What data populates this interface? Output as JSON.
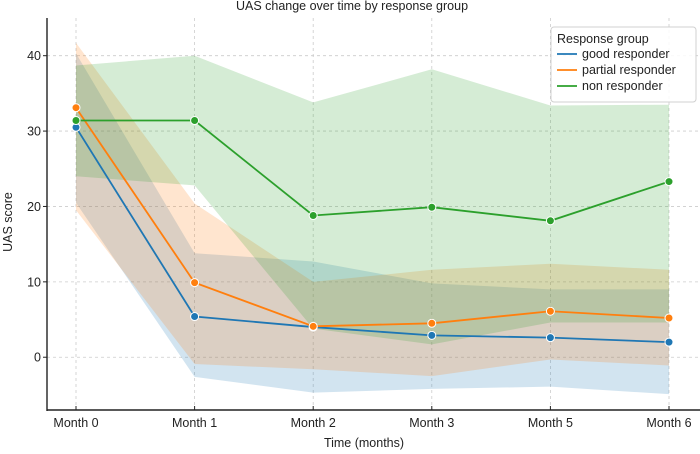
{
  "chart_data": {
    "type": "line",
    "title": "UAS change over time by response group",
    "xlabel": "Time (months)",
    "ylabel": "UAS score",
    "categories": [
      "Month 0",
      "Month 1",
      "Month 2",
      "Month 3",
      "Month 5",
      "Month 6"
    ],
    "ylim": [
      -7,
      45
    ],
    "yticks": [
      0,
      10,
      20,
      30,
      40
    ],
    "grid": true,
    "legend": {
      "title": "Response group",
      "placement": "top-right",
      "entries": [
        "good responder",
        "partial responder",
        "non responder"
      ]
    },
    "series": [
      {
        "name": "good responder",
        "color": "#1f77b4",
        "values": [
          30.5,
          5.4,
          4.0,
          2.9,
          2.6,
          2.0
        ],
        "ci_upper": [
          40.3,
          13.8,
          12.7,
          9.8,
          9.0,
          9.0
        ],
        "ci_lower": [
          20.5,
          -2.6,
          -4.7,
          -4.2,
          -3.9,
          -4.9
        ]
      },
      {
        "name": "partial responder",
        "color": "#ff7f0e",
        "values": [
          33.1,
          9.9,
          4.1,
          4.5,
          6.1,
          5.2
        ],
        "ci_upper": [
          41.7,
          20.4,
          10.0,
          11.6,
          12.4,
          11.6
        ],
        "ci_lower": [
          19.5,
          -0.9,
          -1.6,
          -2.5,
          -0.3,
          -1.1
        ]
      },
      {
        "name": "non responder",
        "color": "#2ca02c",
        "values": [
          31.4,
          31.4,
          18.8,
          19.9,
          18.1,
          23.3
        ],
        "ci_upper": [
          38.7,
          40.0,
          33.8,
          38.2,
          33.4,
          33.5
        ],
        "ci_lower": [
          24.0,
          22.8,
          3.8,
          1.7,
          4.6,
          4.6
        ]
      }
    ]
  }
}
